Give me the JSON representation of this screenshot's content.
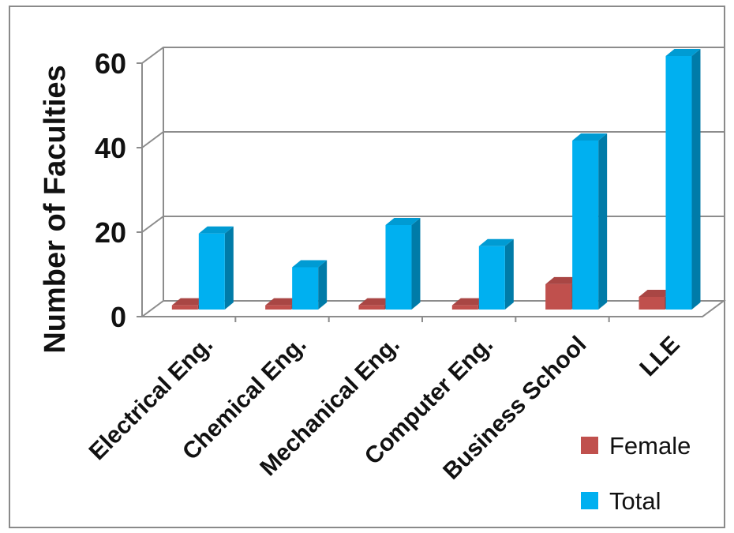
{
  "chart_data": {
    "type": "bar",
    "ylabel": "Number of Faculties",
    "xlabel": "",
    "ylim": [
      0,
      60
    ],
    "yticks": [
      0,
      20,
      40,
      60
    ],
    "grid": true,
    "legend_position": "bottom-right",
    "categories": [
      "Electrical Eng.",
      "Chemical Eng.",
      "Mechanical Eng.",
      "Computer Eng.",
      "Business School",
      "LLE"
    ],
    "series": [
      {
        "name": "Female",
        "color": "#C0504D",
        "values": [
          1,
          1,
          1,
          1,
          6,
          3
        ]
      },
      {
        "name": "Total",
        "color": "#00B0F0",
        "values": [
          18,
          10,
          20,
          15,
          40,
          60
        ]
      }
    ]
  }
}
